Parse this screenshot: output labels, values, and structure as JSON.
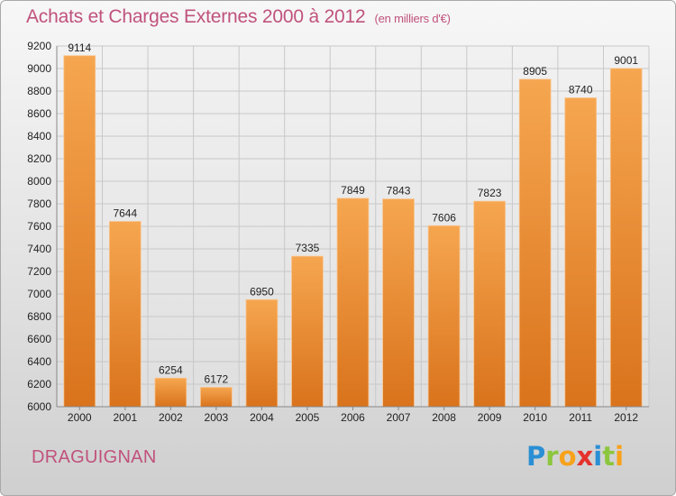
{
  "title": "Achats et Charges Externes 2000 à 2012",
  "unit": "(en milliers d'€)",
  "location": "DRAGUIGNAN",
  "brand": {
    "text": "Proxiti",
    "letters": [
      {
        "ch": "P",
        "color": "#2a8fd4"
      },
      {
        "ch": "r",
        "color": "#8cc63e"
      },
      {
        "ch": "o",
        "color": "#f7a21b"
      },
      {
        "ch": "x",
        "color": "#e5322d"
      },
      {
        "ch": "i",
        "color": "#2a8fd4"
      },
      {
        "ch": "t",
        "color": "#8cc63e"
      },
      {
        "ch": "i",
        "color": "#f7a21b"
      }
    ]
  },
  "colors": {
    "bar_top": "#f6a650",
    "bar_bottom": "#d9731c",
    "title": "#c0527d",
    "grid": "#c8c8c8"
  },
  "chart_data": {
    "type": "bar",
    "categories": [
      "2000",
      "2001",
      "2002",
      "2003",
      "2004",
      "2005",
      "2006",
      "2007",
      "2008",
      "2009",
      "2010",
      "2011",
      "2012"
    ],
    "values": [
      9114,
      7644,
      6254,
      6172,
      6950,
      7335,
      7849,
      7843,
      7606,
      7823,
      8905,
      8740,
      9001
    ],
    "ylim": [
      6000,
      9200
    ],
    "yticks": [
      6000,
      6200,
      6400,
      6600,
      6800,
      7000,
      7200,
      7400,
      7600,
      7800,
      8000,
      8200,
      8400,
      8600,
      8800,
      9000,
      9200
    ],
    "grid": true
  }
}
